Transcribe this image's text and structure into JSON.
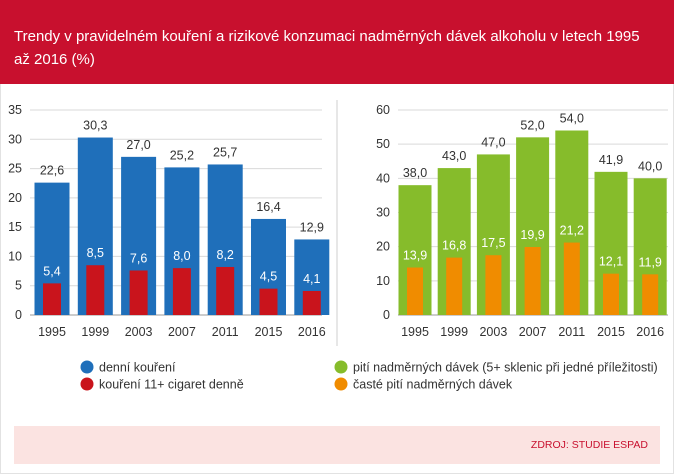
{
  "title": "Trendy v pravidelném kouření a rizikové konzumaci nadměrných dávek alkoholu v letech 1995 až 2016 (%)",
  "source": "ZDROJ: STUDIE ESPAD",
  "colors": {
    "header": "#c8102e",
    "blue": "#1f6fba",
    "red": "#c9141c",
    "green": "#86bc2b",
    "orange": "#f08c00",
    "footer": "#fbe3e1"
  },
  "legend": [
    {
      "label": "denní kouření",
      "color": "#1f6fba"
    },
    {
      "label": "kouření 11+ cigaret denně",
      "color": "#c9141c"
    },
    {
      "label": "pití nadměrných dávek (5+ sklenic při jedné příležitosti)",
      "color": "#86bc2b"
    },
    {
      "label": "časté pití nadměrných dávek",
      "color": "#f08c00"
    }
  ],
  "chart_data": [
    {
      "type": "bar",
      "categories": [
        "1995",
        "1999",
        "2003",
        "2007",
        "2011",
        "2015",
        "2016"
      ],
      "series": [
        {
          "name": "denní kouření",
          "values": [
            22.6,
            30.3,
            27.0,
            25.2,
            25.7,
            16.4,
            12.9
          ],
          "labels": [
            "22,6",
            "30,3",
            "27,0",
            "25,2",
            "25,7",
            "16,4",
            "12,9"
          ],
          "color": "#1f6fba"
        },
        {
          "name": "kouření 11+ cigaret denně",
          "values": [
            5.4,
            8.5,
            7.6,
            8.0,
            8.2,
            4.5,
            4.1
          ],
          "labels": [
            "5,4",
            "8,5",
            "7,6",
            "8,0",
            "8,2",
            "4,5",
            "4,1"
          ],
          "color": "#c9141c"
        }
      ],
      "ylim": [
        0,
        35
      ],
      "yticks": [
        0,
        5,
        10,
        15,
        20,
        25,
        30,
        35
      ],
      "grid": true
    },
    {
      "type": "bar",
      "categories": [
        "1995",
        "1999",
        "2003",
        "2007",
        "2011",
        "2015",
        "2016"
      ],
      "series": [
        {
          "name": "pití nadměrných dávek (5+ sklenic při jedné příležitosti)",
          "values": [
            38.0,
            43.0,
            47.0,
            52.0,
            54.0,
            41.9,
            40.0
          ],
          "labels": [
            "38,0",
            "43,0",
            "47,0",
            "52,0",
            "54,0",
            "41,9",
            "40,0"
          ],
          "color": "#86bc2b"
        },
        {
          "name": "časté pití nadměrných dávek",
          "values": [
            13.9,
            16.8,
            17.5,
            19.9,
            21.2,
            12.1,
            11.9
          ],
          "labels": [
            "13,9",
            "16,8",
            "17,5",
            "19,9",
            "21,2",
            "12,1",
            "11,9"
          ],
          "color": "#f08c00"
        }
      ],
      "ylim": [
        0,
        60
      ],
      "yticks": [
        0,
        10,
        20,
        30,
        40,
        50,
        60
      ],
      "grid": true
    }
  ]
}
